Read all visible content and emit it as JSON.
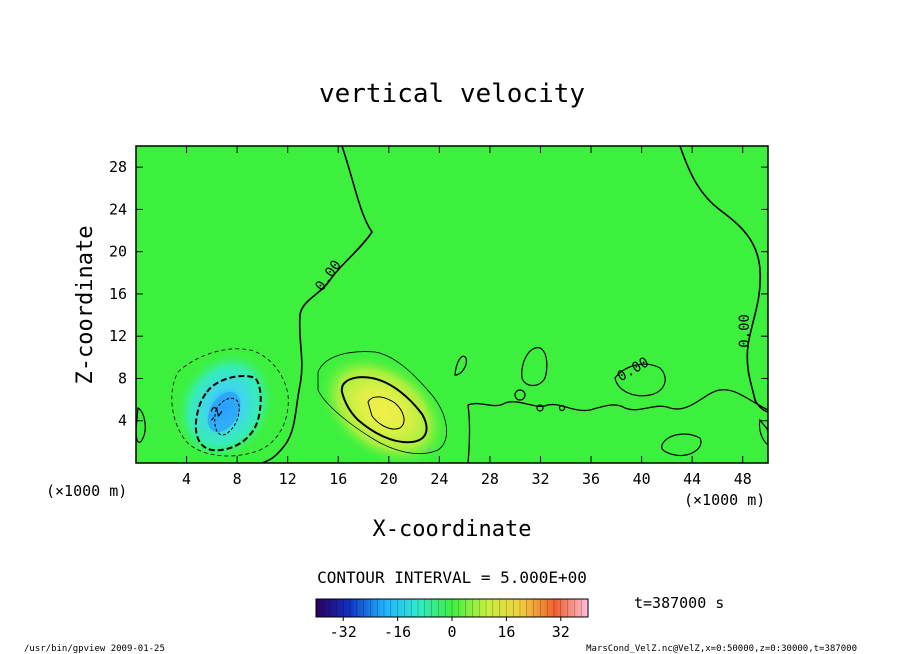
{
  "chart_data": {
    "type": "heatmap",
    "title": "vertical velocity",
    "xlabel": "X-coordinate",
    "ylabel": "Z-coordinate",
    "x_unit_label": "(×1000 m)",
    "z_unit_label": "(×1000 m)",
    "xlim": [
      0,
      50
    ],
    "ylim": [
      0,
      30
    ],
    "x_ticks": [
      "4",
      "8",
      "12",
      "16",
      "20",
      "24",
      "28",
      "32",
      "36",
      "40",
      "44",
      "48"
    ],
    "y_ticks": [
      "4",
      "8",
      "12",
      "16",
      "20",
      "24",
      "28"
    ],
    "x_tick_values": [
      4,
      8,
      12,
      16,
      20,
      24,
      28,
      32,
      36,
      40,
      44,
      48
    ],
    "y_tick_values": [
      4,
      8,
      12,
      16,
      20,
      24,
      28
    ],
    "contour_interval_text": "CONTOUR INTERVAL = 5.000E+00",
    "contour_labels": [
      {
        "text": "0.00",
        "x": 15.5,
        "z": 17.5,
        "rotate": -55
      },
      {
        "text": "0.00",
        "x": 48.5,
        "z": 12.5,
        "rotate": -90
      },
      {
        "text": "0.00",
        "x": 39.5,
        "z": 8.5,
        "rotate": -30
      },
      {
        "text": "-2",
        "x": 6.5,
        "z": 4.3,
        "rotate": -55
      }
    ],
    "features": [
      {
        "name": "downdraft",
        "x": 6.8,
        "z": 4.5,
        "peak": -25
      },
      {
        "name": "updraft",
        "x": 20.0,
        "z": 5.0,
        "peak": 22
      }
    ],
    "colorbar": {
      "min": -40,
      "max": 40,
      "ticks": [
        "-32",
        "-16",
        "0",
        "16",
        "32"
      ],
      "tick_values": [
        -32,
        -16,
        0,
        16,
        32
      ]
    },
    "time_label": "t=387000 s"
  },
  "footer": {
    "left": "/usr/bin/gpview  2009-01-25",
    "right": "MarsCond_VelZ.nc@VelZ,x=0:50000,z=0:30000,t=387000"
  }
}
